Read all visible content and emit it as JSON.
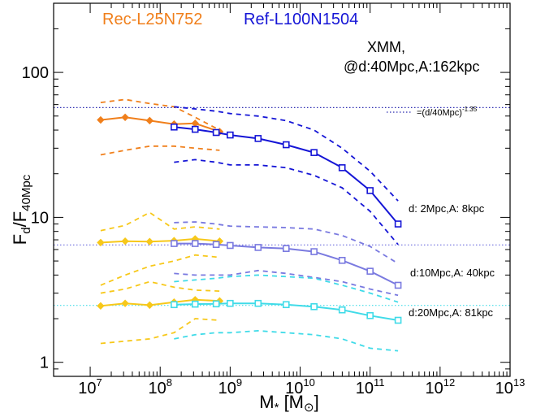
{
  "chart_data": {
    "type": "line",
    "xscale": "log",
    "yscale": "log",
    "xlim": [
      3000000.0,
      10000000000000.0
    ],
    "ylim": [
      0.8,
      300
    ],
    "xlabel": "M* [M⊙]",
    "ylabel": "Fd/F40Mpc",
    "x_tick_labels": [
      {
        "base": "10",
        "exp": "7",
        "value": 10000000.0
      },
      {
        "base": "10",
        "exp": "8",
        "value": 100000000.0
      },
      {
        "base": "10",
        "exp": "9",
        "value": 1000000000.0
      },
      {
        "base": "10",
        "exp": "10",
        "value": 10000000000.0
      },
      {
        "base": "10",
        "exp": "11",
        "value": 100000000000.0
      },
      {
        "base": "10",
        "exp": "12",
        "value": 1000000000000.0
      },
      {
        "base": "10",
        "exp": "13",
        "value": 10000000000000.0
      }
    ],
    "y_tick_labels": [
      {
        "label": "1",
        "value": 1
      },
      {
        "label": "10",
        "value": 10
      },
      {
        "label": "100",
        "value": 100
      }
    ],
    "legend": [
      {
        "label": "Rec-L25N752",
        "color": "#f07f1b"
      },
      {
        "label": "Ref-L100N1504",
        "color": "#1515d6"
      }
    ],
    "annotations": {
      "instrument_line1": "XMM,",
      "instrument_line2": "@d:40Mpc,A:162kpc",
      "power_law_prefix": "=(d/40Mpc)",
      "power_law_exp": "-1.35",
      "label_2mpc": "d: 2Mpc,A:  8kpc",
      "label_10mpc": "d:10Mpc,A: 40kpc",
      "label_20mpc": "d:20Mpc,A: 81kpc"
    },
    "reference_lines": [
      {
        "group": "d2",
        "value": 57.2,
        "color": "#2a2ab0"
      },
      {
        "group": "d10",
        "value": 6.45,
        "color": "#7a7ae0"
      },
      {
        "group": "d20",
        "value": 2.47,
        "color": "#40dbe8"
      }
    ],
    "series": [
      {
        "group": "d2",
        "kind": "median",
        "sim": "Rec-L25N752",
        "color": "#f07f1b",
        "x": [
          14100000.0,
          31600000.0,
          70800000.0,
          158000000.0,
          316000000.0,
          708000000.0
        ],
        "y": [
          47,
          49,
          46.5,
          44,
          44.5,
          39
        ]
      },
      {
        "group": "d2",
        "kind": "upper",
        "sim": "Rec-L25N752",
        "color": "#f07f1b",
        "x": [
          14100000.0,
          31600000.0,
          70800000.0,
          158000000.0,
          316000000.0,
          708000000.0
        ],
        "y": [
          62,
          65,
          61,
          58,
          49,
          40
        ]
      },
      {
        "group": "d2",
        "kind": "lower",
        "sim": "Rec-L25N752",
        "color": "#f07f1b",
        "x": [
          14100000.0,
          31600000.0,
          70800000.0,
          158000000.0,
          316000000.0,
          708000000.0
        ],
        "y": [
          27,
          29,
          31,
          31,
          30,
          29
        ]
      },
      {
        "group": "d2",
        "kind": "median",
        "sim": "Ref-L100N1504",
        "color": "#1515d6",
        "x": [
          158000000.0,
          316000000.0,
          631000000.0,
          1000000000.0,
          2510000000.0,
          6310000000.0,
          15800000000.0,
          39800000000.0,
          100000000000.0,
          251000000000.0
        ],
        "y": [
          42,
          40.5,
          38.5,
          37,
          35,
          31.7,
          28,
          22,
          15.3,
          9
        ]
      },
      {
        "group": "d2",
        "kind": "upper",
        "sim": "Ref-L100N1504",
        "color": "#1515d6",
        "x": [
          158000000.0,
          316000000.0,
          631000000.0,
          1000000000.0,
          2510000000.0,
          6310000000.0,
          15800000000.0,
          39800000000.0,
          100000000000.0,
          251000000000.0
        ],
        "y": [
          58,
          56,
          54,
          52,
          50,
          46.5,
          40,
          30,
          20.8,
          13
        ]
      },
      {
        "group": "d2",
        "kind": "lower",
        "sim": "Ref-L100N1504",
        "color": "#1515d6",
        "x": [
          158000000.0,
          316000000.0,
          631000000.0,
          1000000000.0,
          2510000000.0,
          6310000000.0,
          15800000000.0,
          39800000000.0,
          100000000000.0,
          251000000000.0
        ],
        "y": [
          24,
          25,
          24,
          23,
          23,
          22,
          19.5,
          16,
          11,
          6.5
        ]
      },
      {
        "group": "d10",
        "kind": "median",
        "sim": "Rec-L25N752",
        "color": "#f7c81a",
        "x": [
          14100000.0,
          31600000.0,
          70800000.0,
          158000000.0,
          316000000.0,
          708000000.0
        ],
        "y": [
          6.7,
          6.85,
          6.8,
          6.9,
          7.1,
          6.85
        ]
      },
      {
        "group": "d10",
        "kind": "upper",
        "sim": "Rec-L25N752",
        "color": "#f7c81a",
        "x": [
          14100000.0,
          31600000.0,
          70800000.0,
          158000000.0,
          316000000.0,
          708000000.0
        ],
        "y": [
          8.1,
          8.8,
          10.8,
          8.3,
          8.6,
          8.3
        ]
      },
      {
        "group": "d10",
        "kind": "lower",
        "sim": "Rec-L25N752",
        "color": "#f7c81a",
        "x": [
          14100000.0,
          31600000.0,
          70800000.0,
          158000000.0,
          316000000.0,
          708000000.0
        ],
        "y": [
          3.4,
          4.0,
          4.6,
          5.0,
          5.5,
          5.3
        ]
      },
      {
        "group": "d10",
        "kind": "median",
        "sim": "Ref-L100N1504",
        "color": "#7a7ae0",
        "x": [
          158000000.0,
          316000000.0,
          631000000.0,
          1000000000.0,
          2510000000.0,
          6310000000.0,
          15800000000.0,
          39800000000.0,
          100000000000.0,
          251000000000.0
        ],
        "y": [
          6.6,
          6.6,
          6.5,
          6.4,
          6.2,
          6.1,
          5.8,
          5.05,
          4.25,
          3.4
        ]
      },
      {
        "group": "d10",
        "kind": "upper",
        "sim": "Ref-L100N1504",
        "color": "#7a7ae0",
        "x": [
          158000000.0,
          316000000.0,
          631000000.0,
          1000000000.0,
          2510000000.0,
          6310000000.0,
          15800000000.0,
          39800000000.0,
          100000000000.0,
          251000000000.0
        ],
        "y": [
          9.2,
          9.3,
          9.0,
          8.7,
          8.6,
          8.5,
          8.3,
          7.5,
          6.3,
          4.8
        ]
      },
      {
        "group": "d10",
        "kind": "lower",
        "sim": "Ref-L100N1504",
        "color": "#7a7ae0",
        "x": [
          158000000.0,
          316000000.0,
          631000000.0,
          1000000000.0,
          2510000000.0,
          6310000000.0,
          15800000000.0,
          39800000000.0,
          100000000000.0,
          251000000000.0
        ],
        "y": [
          4.1,
          4.0,
          4.0,
          4.0,
          4.3,
          4.1,
          3.85,
          3.6,
          3.2,
          2.9
        ]
      },
      {
        "group": "d20",
        "kind": "median",
        "sim": "Rec-L25N752",
        "color": "#f7c81a",
        "x": [
          14100000.0,
          31600000.0,
          70800000.0,
          158000000.0,
          316000000.0,
          708000000.0
        ],
        "y": [
          2.45,
          2.55,
          2.48,
          2.6,
          2.7,
          2.65
        ]
      },
      {
        "group": "d20",
        "kind": "upper",
        "sim": "Rec-L25N752",
        "color": "#f7c81a",
        "x": [
          14100000.0,
          31600000.0,
          70800000.0,
          158000000.0,
          316000000.0,
          708000000.0
        ],
        "y": [
          3.0,
          3.2,
          3.6,
          3.3,
          3.15,
          3.1
        ]
      },
      {
        "group": "d20",
        "kind": "lower",
        "sim": "Rec-L25N752",
        "color": "#f7c81a",
        "x": [
          14100000.0,
          31600000.0,
          70800000.0,
          158000000.0,
          316000000.0,
          708000000.0
        ],
        "y": [
          1.35,
          1.4,
          1.45,
          1.6,
          2.0,
          1.95
        ]
      },
      {
        "group": "d20",
        "kind": "median",
        "sim": "Ref-L100N1504",
        "color": "#40dbe8",
        "x": [
          158000000.0,
          316000000.0,
          631000000.0,
          1000000000.0,
          2510000000.0,
          6310000000.0,
          15800000000.0,
          39800000000.0,
          100000000000.0,
          251000000000.0
        ],
        "y": [
          2.5,
          2.52,
          2.53,
          2.55,
          2.55,
          2.5,
          2.42,
          2.3,
          2.1,
          1.95
        ]
      },
      {
        "group": "d20",
        "kind": "upper",
        "sim": "Ref-L100N1504",
        "color": "#40dbe8",
        "x": [
          158000000.0,
          316000000.0,
          631000000.0,
          1000000000.0,
          2510000000.0,
          6310000000.0,
          15800000000.0,
          39800000000.0,
          100000000000.0,
          251000000000.0
        ],
        "y": [
          3.6,
          3.7,
          3.8,
          3.9,
          4.0,
          3.9,
          3.8,
          3.4,
          3.0,
          2.6
        ]
      },
      {
        "group": "d20",
        "kind": "lower",
        "sim": "Ref-L100N1504",
        "color": "#40dbe8",
        "x": [
          158000000.0,
          316000000.0,
          631000000.0,
          1000000000.0,
          2510000000.0,
          6310000000.0,
          15800000000.0,
          39800000000.0,
          100000000000.0,
          251000000000.0
        ],
        "y": [
          1.45,
          1.55,
          1.6,
          1.6,
          1.65,
          1.6,
          1.55,
          1.45,
          1.25,
          1.2
        ]
      }
    ]
  }
}
